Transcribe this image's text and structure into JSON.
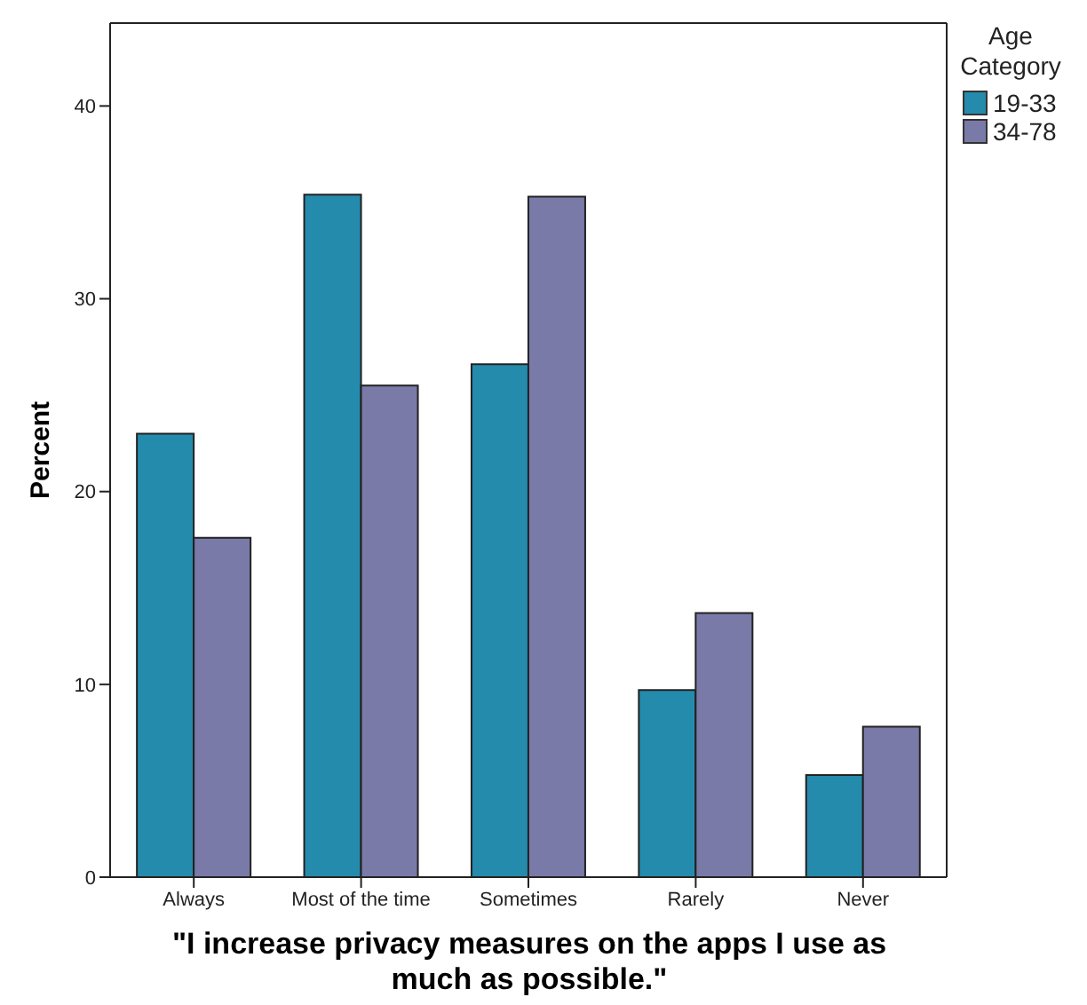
{
  "chart_data": {
    "type": "bar",
    "xlabel": "\"I increase privacy measures on the apps I use as much as possible.\"",
    "ylabel": "Percent",
    "legend_title": "Age Category",
    "categories": [
      "Always",
      "Most of the time",
      "Sometimes",
      "Rarely",
      "Never"
    ],
    "series": [
      {
        "name": "19-33",
        "color": "#248bad",
        "values": [
          23.0,
          35.4,
          26.6,
          9.7,
          5.3
        ]
      },
      {
        "name": "34-78",
        "color": "#7a7aa8",
        "values": [
          17.6,
          25.5,
          35.3,
          13.7,
          7.8
        ]
      }
    ],
    "ylim": [
      0,
      44.3
    ],
    "yticks": [
      0,
      10,
      20,
      30,
      40
    ],
    "grid": false,
    "legend": "top right"
  }
}
